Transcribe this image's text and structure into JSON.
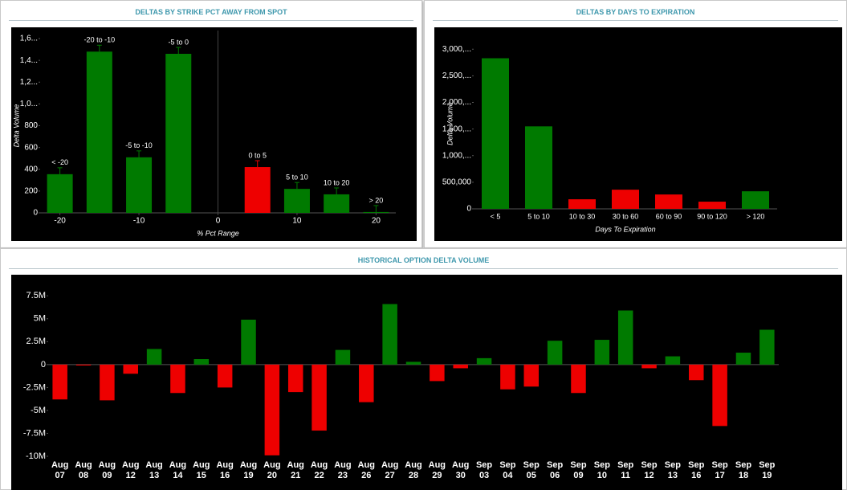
{
  "chart_data": [
    {
      "type": "bar",
      "title": "DELTAS BY STRIKE PCT AWAY FROM SPOT",
      "xlabel": "% Pct Range",
      "ylabel": "Delta Volume",
      "categories": [
        "< -20",
        "-20 to -10",
        "-5 to -10",
        "-5 to 0",
        "0 to 5",
        "5 to 10",
        "10 to 20",
        "> 20"
      ],
      "x": [
        -20,
        -15,
        -10,
        -5,
        5,
        10,
        15,
        20
      ],
      "values": [
        355,
        1480,
        510,
        1460,
        420,
        220,
        170,
        8
      ],
      "colors": [
        "#007a00",
        "#007a00",
        "#007a00",
        "#007a00",
        "#ee0000",
        "#007a00",
        "#007a00",
        "#007a00"
      ],
      "xlim": [
        -22.5,
        22.5
      ],
      "xticks": [
        -20,
        -10,
        0,
        10,
        20
      ],
      "ylim": [
        0,
        1600
      ],
      "yticks": [
        0,
        200,
        400,
        600,
        800,
        {
          "value": 1000,
          "label": "1,0..."
        },
        {
          "value": 1200,
          "label": "1,2..."
        },
        {
          "value": 1400,
          "label": "1,4..."
        },
        {
          "value": 1600,
          "label": "1,6..."
        }
      ]
    },
    {
      "type": "bar",
      "title": "DELTAS BY DAYS TO EXPIRATION",
      "xlabel": "Days To Expiration",
      "ylabel": "Delta Volume",
      "categories": [
        "< 5",
        "5 to 10",
        "10 to 30",
        "30 to 60",
        "60 to 90",
        "90 to 120",
        "> 120"
      ],
      "values": [
        2830000,
        1550000,
        180000,
        360000,
        270000,
        135000,
        330000
      ],
      "colors": [
        "#007a00",
        "#007a00",
        "#ee0000",
        "#ee0000",
        "#ee0000",
        "#ee0000",
        "#007a00"
      ],
      "ylim": [
        0,
        3200000
      ],
      "yticks": [
        0,
        {
          "value": 500000,
          "label": "500,000"
        },
        {
          "value": 1000000,
          "label": "1,000,..."
        },
        {
          "value": 1500000,
          "label": "1,500,..."
        },
        {
          "value": 2000000,
          "label": "2,000,..."
        },
        {
          "value": 2500000,
          "label": "2,500,..."
        },
        {
          "value": 3000000,
          "label": "3,000,..."
        }
      ]
    },
    {
      "type": "bar",
      "title": "HISTORICAL OPTION DELTA VOLUME",
      "categories": [
        "Aug 07",
        "Aug 08",
        "Aug 09",
        "Aug 12",
        "Aug 13",
        "Aug 14",
        "Aug 15",
        "Aug 16",
        "Aug 19",
        "Aug 20",
        "Aug 21",
        "Aug 22",
        "Aug 23",
        "Aug 26",
        "Aug 27",
        "Aug 28",
        "Aug 29",
        "Aug 30",
        "Sep 03",
        "Sep 04",
        "Sep 05",
        "Sep 06",
        "Sep 09",
        "Sep 10",
        "Sep 11",
        "Sep 12",
        "Sep 13",
        "Sep 16",
        "Sep 17",
        "Sep 18",
        "Sep 19"
      ],
      "values": [
        -3800000,
        -100000,
        -3900000,
        -1000000,
        1700000,
        -3100000,
        600000,
        -2500000,
        4900000,
        -9900000,
        -3000000,
        -7200000,
        1600000,
        -4100000,
        6600000,
        300000,
        -1800000,
        -400000,
        700000,
        -2700000,
        -2400000,
        2600000,
        -3100000,
        2700000,
        5900000,
        -400000,
        900000,
        -1700000,
        -6700000,
        1300000,
        3800000
      ],
      "positive_color": "#007a00",
      "negative_color": "#ee0000",
      "ylim": [
        -10000000,
        8750000
      ],
      "yticks": [
        {
          "value": -10000000,
          "label": "-10M"
        },
        {
          "value": -7500000,
          "label": "-7.5M"
        },
        {
          "value": -5000000,
          "label": "-5M"
        },
        {
          "value": -2500000,
          "label": "-2.5M"
        },
        0,
        {
          "value": 2500000,
          "label": "2.5M"
        },
        {
          "value": 5000000,
          "label": "5M"
        },
        {
          "value": 7500000,
          "label": "7.5M"
        }
      ]
    }
  ]
}
